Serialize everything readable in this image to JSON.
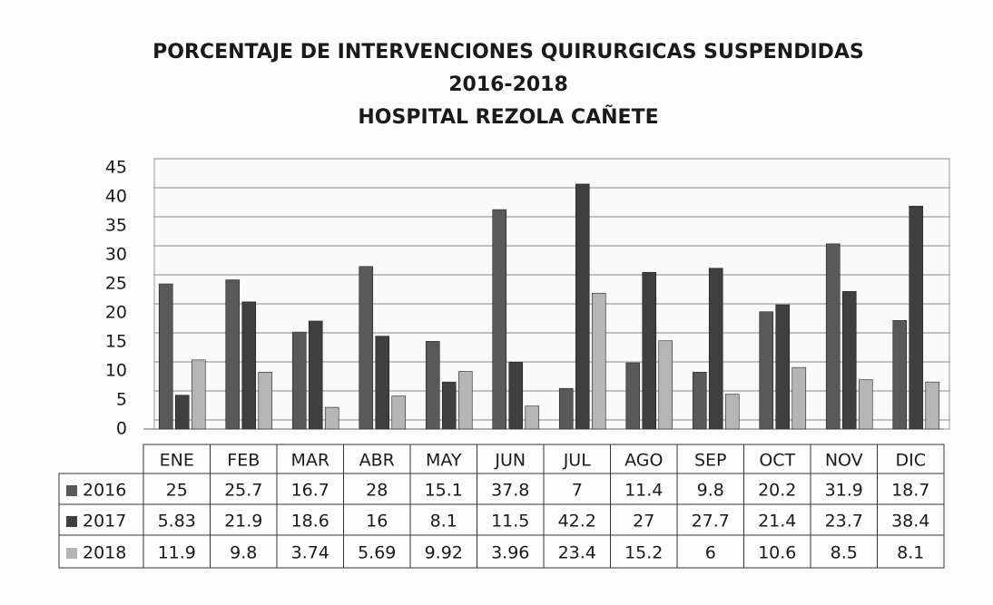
{
  "chart_data": {
    "type": "bar",
    "title": "PORCENTAJE DE INTERVENCIONES QUIRURGICAS SUSPENDIDAS",
    "subtitle": [
      "2016-2018",
      "HOSPITAL REZOLA CAÑETE"
    ],
    "categories": [
      "ENE",
      "FEB",
      "MAR",
      "ABR",
      "MAY",
      "JUN",
      "JUL",
      "AGO",
      "SEP",
      "OCT",
      "NOV",
      "DIC"
    ],
    "series": [
      {
        "name": "2016",
        "color": "#595959",
        "values": [
          25,
          25.7,
          16.7,
          28,
          15.1,
          37.8,
          7,
          11.4,
          9.8,
          20.2,
          31.9,
          18.7
        ]
      },
      {
        "name": "2017",
        "color": "#3f3f3f",
        "values": [
          5.83,
          21.9,
          18.6,
          16,
          8.1,
          11.5,
          42.2,
          27,
          27.7,
          21.4,
          23.7,
          38.4
        ]
      },
      {
        "name": "2018",
        "color": "#b5b5b5",
        "values": [
          11.9,
          9.8,
          3.74,
          5.69,
          9.92,
          3.96,
          23.4,
          15.2,
          6,
          10.6,
          8.5,
          8.1
        ]
      }
    ],
    "ylim": [
      0,
      45
    ],
    "yticks": [
      0,
      5,
      10,
      15,
      20,
      25,
      30,
      35,
      40,
      45
    ],
    "grid": true
  }
}
